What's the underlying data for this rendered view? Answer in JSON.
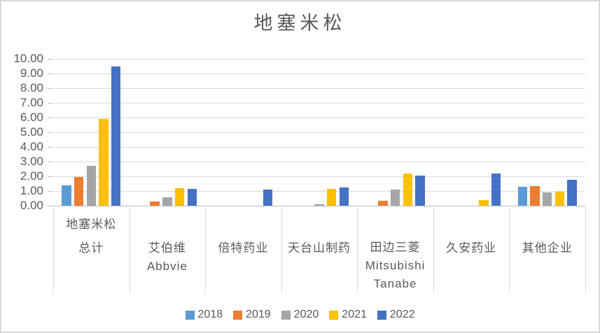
{
  "window": {
    "background": "#FFFFFF",
    "border_color": "#D9D9D9"
  },
  "chart_data": {
    "type": "bar",
    "title": "地塞米松",
    "title_color": "#595959",
    "axis_text_color": "#595959",
    "gridline_color": "#D9D9D9",
    "axis_line_color": "#BFBFBF",
    "ylim": [
      0,
      10
    ],
    "ytick_step": 1.0,
    "ytick_labels": [
      "10.00",
      "9.00",
      "8.00",
      "7.00",
      "6.00",
      "5.00",
      "4.00",
      "3.00",
      "2.00",
      "1.00",
      "0.00"
    ],
    "grid": true,
    "legend_position": "bottom",
    "categories": [
      "地塞米松 总计",
      "艾伯维 Abbvie",
      "倍特药业",
      "天台山制药",
      "田边三菱 Mitsubishi Tanabe",
      "久安药业",
      "其他企业"
    ],
    "category_axis_labels": [
      {
        "top": "地塞米松",
        "lines": [
          "总计"
        ]
      },
      {
        "top": "",
        "lines": [
          "艾伯维",
          "Abbvie"
        ]
      },
      {
        "top": "",
        "lines": [
          "倍特药业"
        ]
      },
      {
        "top": "",
        "lines": [
          "天台山制药"
        ]
      },
      {
        "top": "",
        "lines": [
          "田边三菱",
          "Mitsubishi",
          "Tanabe"
        ]
      },
      {
        "top": "",
        "lines": [
          "久安药业"
        ]
      },
      {
        "top": "",
        "lines": [
          "其他企业"
        ]
      }
    ],
    "series": [
      {
        "name": "2018",
        "color": "#5B9BD5",
        "values": [
          1.4,
          0,
          0,
          0,
          0,
          0,
          1.3
        ]
      },
      {
        "name": "2019",
        "color": "#ED7D31",
        "values": [
          1.95,
          0.3,
          0,
          0,
          0.35,
          0,
          1.35
        ]
      },
      {
        "name": "2020",
        "color": "#A5A5A5",
        "values": [
          2.7,
          0.55,
          0,
          0.1,
          1.1,
          0,
          0.9
        ]
      },
      {
        "name": "2021",
        "color": "#FFC000",
        "values": [
          5.9,
          1.2,
          0,
          1.15,
          2.2,
          0.4,
          0.95
        ]
      },
      {
        "name": "2022",
        "color": "#4472C4",
        "values": [
          9.5,
          1.15,
          1.08,
          1.25,
          2.05,
          2.2,
          1.75
        ]
      }
    ]
  }
}
